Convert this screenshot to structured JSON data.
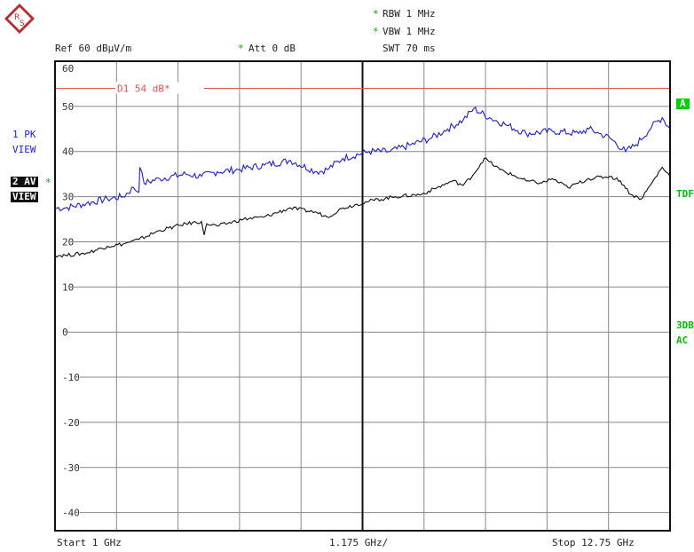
{
  "header": {
    "rbw_star": "*",
    "rbw": "RBW  1 MHz",
    "vbw_star": "*",
    "vbw": "VBW  1 MHz",
    "swt": "SWT  70 ms",
    "ref": "Ref  60 dBµV/m",
    "att_star": "*",
    "att": "Att  0 dB"
  },
  "left_labels": {
    "trace1_line1": "1 PK",
    "trace1_line2": "VIEW",
    "trace2_line1": "2 AV",
    "trace2_star": "*",
    "trace2_line2": "VIEW"
  },
  "right_labels": {
    "a": "A",
    "tdf": "TDF",
    "line3db": "3DB",
    "ac": "AC"
  },
  "footer": {
    "start": "Start  1 GHz",
    "span": "1.175 GHz/",
    "stop": "Stop  12.75 GHz"
  },
  "colors": {
    "trace1": "#1f1fcc",
    "trace2": "#111111",
    "limit": "#e05050",
    "label_green": "#00c000"
  },
  "chart_data": {
    "type": "line",
    "xlabel": "",
    "ylabel": "",
    "xlim": [
      1.0,
      12.75
    ],
    "ylim": [
      -44,
      60
    ],
    "x_unit": "GHz",
    "y_unit": "dBµV/m",
    "y_ticks": [
      "60",
      "50",
      "40",
      "30",
      "20",
      "10",
      "0",
      "-10",
      "-20",
      "-30",
      "-40"
    ],
    "y_tick_values": [
      60,
      50,
      40,
      30,
      20,
      10,
      0,
      -10,
      -20,
      -30,
      -40
    ],
    "x_divisions": 10,
    "grid": true,
    "limit_line": {
      "label": "D1 54 dB*",
      "value": 54
    },
    "series": [
      {
        "name": "1 PK",
        "x": [
          1.0,
          1.2,
          1.6,
          2.0,
          2.3,
          2.5,
          2.6,
          2.62,
          2.7,
          3.0,
          3.5,
          3.8,
          4.1,
          4.5,
          5.0,
          5.5,
          6.0,
          6.2,
          6.5,
          7.0,
          7.4,
          7.8,
          8.2,
          8.5,
          8.8,
          9.0,
          9.3,
          9.6,
          10.0,
          10.5,
          11.0,
          11.2,
          11.4,
          11.6,
          11.9,
          12.1,
          12.4,
          12.6,
          12.75
        ],
        "values": [
          27.5,
          27.5,
          28.5,
          29.5,
          30.0,
          32.0,
          31.0,
          36.5,
          33.0,
          34.0,
          35.0,
          34.5,
          35.5,
          36.0,
          37.0,
          38.0,
          35.5,
          36.0,
          38.5,
          40.0,
          40.0,
          41.5,
          43.0,
          45.0,
          47.0,
          49.5,
          47.5,
          46.0,
          44.0,
          44.5,
          44.0,
          45.0,
          44.0,
          43.0,
          40.0,
          41.5,
          45.5,
          47.5,
          45.0
        ]
      },
      {
        "name": "2 AV",
        "x": [
          1.0,
          1.2,
          1.6,
          2.0,
          2.3,
          2.6,
          3.0,
          3.5,
          3.8,
          3.85,
          3.9,
          4.1,
          4.6,
          5.0,
          5.5,
          6.0,
          6.2,
          6.5,
          7.0,
          7.5,
          8.0,
          8.3,
          8.6,
          8.8,
          9.0,
          9.2,
          9.5,
          10.0,
          10.3,
          10.5,
          10.8,
          11.2,
          11.6,
          11.8,
          12.0,
          12.2,
          12.4,
          12.6,
          12.75
        ],
        "values": [
          17.0,
          17.0,
          17.5,
          19.0,
          19.5,
          20.5,
          22.5,
          24.0,
          24.5,
          21.5,
          24.0,
          23.5,
          25.0,
          25.5,
          27.5,
          26.5,
          25.5,
          27.5,
          29.0,
          30.0,
          30.5,
          32.0,
          33.5,
          32.5,
          35.0,
          38.5,
          36.0,
          33.5,
          33.0,
          34.0,
          32.0,
          34.0,
          34.5,
          33.5,
          30.5,
          29.5,
          33.0,
          36.5,
          34.5
        ]
      }
    ]
  }
}
